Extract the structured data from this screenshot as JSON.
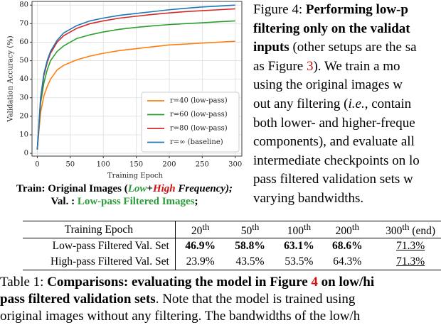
{
  "chart_data": {
    "type": "line",
    "x": [
      0,
      5,
      10,
      15,
      20,
      30,
      40,
      50,
      60,
      80,
      100,
      125,
      150,
      175,
      200,
      225,
      250,
      275,
      300
    ],
    "xlabel": "Training Epoch",
    "ylabel": "Validation Accuracy (%)",
    "xlim": [
      -8,
      310
    ],
    "ylim": [
      -1.5,
      82
    ],
    "xticks": [
      0,
      50,
      100,
      150,
      200,
      250,
      300
    ],
    "yticks": [
      0,
      10,
      20,
      30,
      40,
      50,
      60,
      70,
      80
    ],
    "grid": true,
    "legend": "lower right",
    "series": [
      {
        "name": "r=40 (low-pass)",
        "color": "#ff7f0e",
        "values": [
          2,
          22,
          31,
          36,
          40,
          45,
          47.5,
          49,
          50.5,
          52.5,
          54,
          55.5,
          56.5,
          57.5,
          58.5,
          59,
          59.5,
          60,
          60.5
        ]
      },
      {
        "name": "r=60 (low-pass)",
        "color": "#2ca02c",
        "values": [
          2,
          27,
          38,
          45,
          50,
          55,
          58,
          60,
          62,
          64,
          65.5,
          67,
          68,
          68.8,
          69.5,
          70,
          70.5,
          71,
          71.5
        ]
      },
      {
        "name": "r=80 (low-pass)",
        "color": "#d62728",
        "values": [
          2,
          29,
          42,
          49,
          54,
          60,
          63.5,
          65.5,
          67.5,
          70,
          71.5,
          73,
          74,
          75,
          75.8,
          76.5,
          77,
          77.5,
          78
        ]
      },
      {
        "name": "r=∞ (baseline)",
        "color": "#1f77b4",
        "values": [
          2,
          30,
          43,
          50,
          55,
          61,
          65,
          67,
          69,
          71.5,
          73,
          74.5,
          75.5,
          76.5,
          77.5,
          78.3,
          79,
          79.5,
          80
        ]
      }
    ]
  },
  "chart_caption": {
    "line1": [
      "Train: Original Images (",
      "Low",
      "+",
      "High",
      " Frequency);"
    ],
    "line2": [
      "Val. : ",
      "Low-pass Filtered Images",
      ";"
    ]
  },
  "figure_caption": {
    "lines": [
      [
        "Figure 4: ",
        "Performing low-p"
      ],
      [
        "filtering only on the validat"
      ],
      [
        "inputs",
        " (other setups are the sa"
      ],
      [
        "as Figure ",
        "3",
        ").  We train a mo"
      ],
      [
        "using the original images w"
      ],
      [
        "out any filtering (",
        "i.e.",
        ", contain"
      ],
      [
        "both lower- and higher-freque"
      ],
      [
        "components), and evaluate all"
      ],
      [
        "intermediate checkpoints on lo"
      ],
      [
        "pass filtered validation sets w"
      ],
      [
        "varying bandwidths."
      ]
    ]
  },
  "table": {
    "header": [
      [
        "Training Epoch"
      ],
      [
        "20",
        "th"
      ],
      [
        "50",
        "th"
      ],
      [
        "100",
        "th"
      ],
      [
        "200",
        "th"
      ],
      [
        "300",
        "th",
        " (end)"
      ]
    ],
    "rows": [
      [
        "Low-pass Filtered Val. Set",
        "46.9%",
        "58.8%",
        "63.1%",
        "68.6%",
        "71.3%"
      ],
      [
        "High-pass Filtered Val. Set",
        "23.9%",
        "43.5%",
        "53.5%",
        "64.3%",
        "71.3%"
      ]
    ]
  },
  "table_caption": {
    "lines": [
      [
        "Table 1: ",
        "Comparisons: evaluating the model in Figure ",
        "4",
        " on low/hi"
      ],
      [
        "pass filtered validation sets",
        ". Note that the model is trained using"
      ],
      [
        "original images without any filtering. The bandwidths of the low/h"
      ]
    ]
  }
}
